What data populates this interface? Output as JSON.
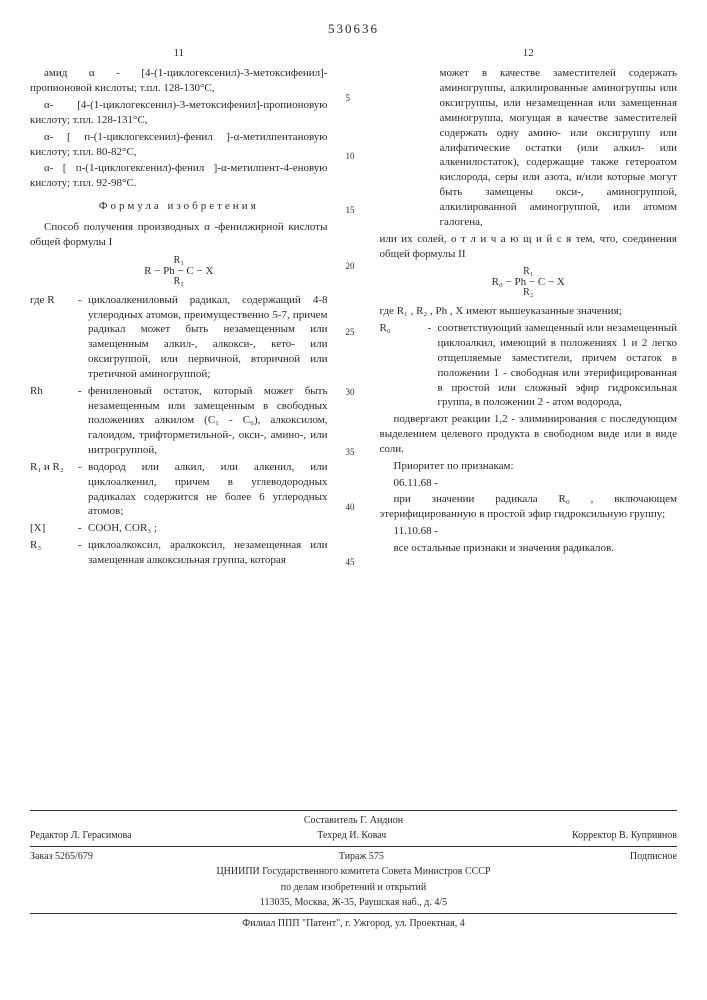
{
  "docNumber": "530636",
  "pageLeft": "11",
  "pageRight": "12",
  "leftCol": {
    "p1": "амид α - [4-(1-циклогексенил)-3-метоксифенил]-пропионовой кислоты; т.пл. 128-130°С,",
    "p2": "α- [4-(1-циклогексенил)-3-метоксифенил]-пропионовую кислоту; т.пл. 128-131°С,",
    "p3": "α- [ п-(1-циклогексенил)-фенил ]-α-метилпентановую кислоту; т.пл. 80-82°С,",
    "p4": "α- [ п-(1-циклогексенил)-фенил ]-α-метилпент-4-еновую кислоту; т.пл. 92-98°С.",
    "sectionTitle": "Формула изобретения",
    "p5": "Способ получения производных α -фенилжирной кислоты общей формулы I",
    "formula1_top": "R₁",
    "formula1_mid": "R − Ph − C − X",
    "formula1_bot": "R₂",
    "where": "где",
    "defs": [
      {
        "label": "R",
        "text": "циклоалкениловый радикал, содержащий 4-8 углеродных атомов, преимущественно 5-7, причем радикал может быть незамещенным или замещенным алкил-, алкокси-, кето- или оксигруппой, или первичной, вторичной или третичной аминогруппой;"
      },
      {
        "label": "Rh",
        "text": "фениленовый остаток, который может быть незамещенным или замещенным в свободных положениях алкилом (С₁ - С₆), алкоксилом, галоидом, трифторметильной-, окси-, амино-, или нитрогруппой,"
      },
      {
        "label": "R₁ и R₂",
        "text": "водород или алкил, или алкенил, или циклоалкенил, причем в углеводородных радикалах содержится не более 6 углеродных атомов;"
      },
      {
        "label": "[X]",
        "text": "СООН, СОR₃ ;"
      },
      {
        "label": "R₃",
        "text": "циклоалкоксил, аралкоксил, незамещенная или замещенная алкоксильная группа, которая"
      }
    ]
  },
  "rightCol": {
    "p1": "может в качестве заместителей содержать аминогруппы, алкилированные аминогруппы или оксигруппы, или незамещенная или замещенная аминогруппа, могущая в качестве заместителей содержать одну амино- или оксигруппу или алифатические остатки (или алкил- или алкенилостаток), содержащие также гетероатом кислорода, серы или азота, и/или которые могут быть замещены окси-, аминогруппой, алкилированной аминогруппой, или атомом галогена,",
    "p2": "или их солей, о т л и ч а ю щ и й с я тем, что, соединения общей формулы II",
    "formula2_top": "R₁",
    "formula2_mid": "R₀ − Ph − C − X",
    "formula2_bot": "R₂",
    "p3": "где R₁ , R₂ , Ph , X имеют вышеуказанные значения;",
    "def_r0_label": "R₀",
    "def_r0_text": "соответствующий замещенный или незамещенный циклоалкил, имеющий в положениях 1 и 2 легко отщепляемые заместители, причем остаток в положении 1 - свободная или этерифицированная в простой или сложный эфир гидроксильная группа, в положении 2 - атом водорода,",
    "p4": "подвергают реакции 1,2 - элиминирования с последующим выделением целевого продукта в свободном виде или в виде соли.",
    "p5": "Приоритет по признакам:",
    "p6": "06.11.68 -",
    "p7": "при значении радикала R₀ , включающем этерифицированную в простой эфир гидроксильную группу;",
    "p8": "11.10.68 -",
    "p9": "все остальные признаки и значения радикалов."
  },
  "gutterNums": [
    "5",
    "10",
    "15",
    "20",
    "25",
    "30",
    "35",
    "40",
    "45"
  ],
  "footer": {
    "compositor": "Составитель Г. Андион",
    "editor": "Редактор Л. Герасимова",
    "techred": "Техред И. Ковач",
    "corrector": "Корректор В. Куприянов",
    "order": "Заказ 5265/679",
    "tirage": "Тираж 575",
    "signed": "Подписное",
    "org1": "ЦНИИПИ Государственного комитета Совета Министров СССР",
    "org2": "по делам изобретений и открытий",
    "addr1": "113035, Москва, Ж-35, Раушская наб., д. 4/5",
    "addr2": "Филиал ППП \"Патент\", г. Ужгород, ул. Проектная, 4"
  }
}
